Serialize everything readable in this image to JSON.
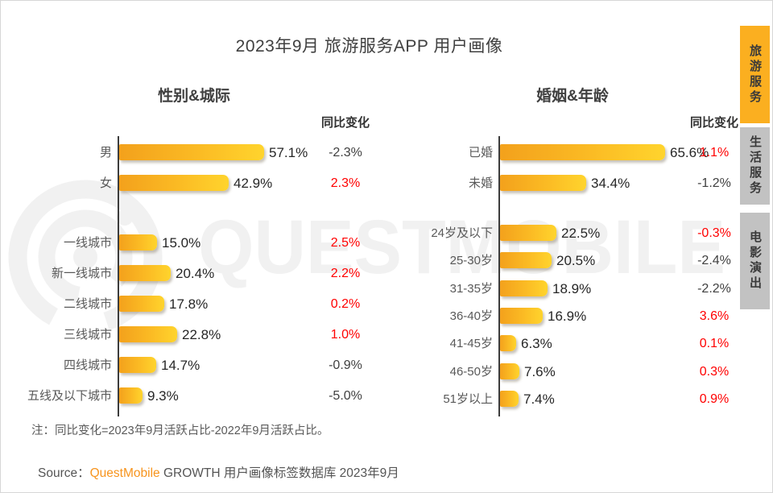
{
  "page": {
    "title": "2023年9月 旅游服务APP 用户画像",
    "note": "注：同比变化=2023年9月活跃占比-2022年9月活跃占比。",
    "source_prefix": "Source：",
    "source_brand": "QuestMobile",
    "source_suffix": " GROWTH 用户画像标签数据库 2023年9月"
  },
  "watermark_text": "QUESTMOBILE",
  "colors": {
    "bar_gradient_start": "#F3A11C",
    "bar_gradient_end": "#FFD42D",
    "change_positive_red": "#FF0000",
    "change_neutral": "#404040",
    "tab_active_bg": "#FBAF20",
    "tab_inactive_bg": "#C2C2C2",
    "brand_orange": "#F7941D",
    "watermark_gray": "#F1F1F1"
  },
  "tabs": [
    {
      "label": "旅游服务",
      "active": true
    },
    {
      "label": "生活服务",
      "active": false
    },
    {
      "label": "电影演出",
      "active": false
    }
  ],
  "chart_data": [
    {
      "type": "bar",
      "orientation": "horizontal",
      "title": "性别&城际",
      "change_header": "同比变化",
      "unit": "%",
      "groups": [
        {
          "rows": [
            {
              "label": "男",
              "value": 57.1,
              "value_label": "57.1%",
              "change": "-2.3%",
              "change_red": false
            },
            {
              "label": "女",
              "value": 42.9,
              "value_label": "42.9%",
              "change": "2.3%",
              "change_red": true
            }
          ]
        },
        {
          "rows": [
            {
              "label": "一线城市",
              "value": 15.0,
              "value_label": "15.0%",
              "change": "2.5%",
              "change_red": true
            },
            {
              "label": "新一线城市",
              "value": 20.4,
              "value_label": "20.4%",
              "change": "2.2%",
              "change_red": true
            },
            {
              "label": "二线城市",
              "value": 17.8,
              "value_label": "17.8%",
              "change": "0.2%",
              "change_red": true
            },
            {
              "label": "三线城市",
              "value": 22.8,
              "value_label": "22.8%",
              "change": "1.0%",
              "change_red": true
            },
            {
              "label": "四线城市",
              "value": 14.7,
              "value_label": "14.7%",
              "change": "-0.9%",
              "change_red": false
            },
            {
              "label": "五线及以下城市",
              "value": 9.3,
              "value_label": "9.3%",
              "change": "-5.0%",
              "change_red": false
            }
          ]
        }
      ]
    },
    {
      "type": "bar",
      "orientation": "horizontal",
      "title": "婚姻&年龄",
      "change_header": "同比变化",
      "unit": "%",
      "groups": [
        {
          "rows": [
            {
              "label": "已婚",
              "value": 65.6,
              "value_label": "65.6%",
              "change": "1.1%",
              "change_red": true
            },
            {
              "label": "未婚",
              "value": 34.4,
              "value_label": "34.4%",
              "change": "-1.2%",
              "change_red": false
            }
          ]
        },
        {
          "rows": [
            {
              "label": "24岁及以下",
              "value": 22.5,
              "value_label": "22.5%",
              "change": "-0.3%",
              "change_red": true
            },
            {
              "label": "25-30岁",
              "value": 20.5,
              "value_label": "20.5%",
              "change": "-2.4%",
              "change_red": false
            },
            {
              "label": "31-35岁",
              "value": 18.9,
              "value_label": "18.9%",
              "change": "-2.2%",
              "change_red": false
            },
            {
              "label": "36-40岁",
              "value": 16.9,
              "value_label": "16.9%",
              "change": "3.6%",
              "change_red": true
            },
            {
              "label": "41-45岁",
              "value": 6.3,
              "value_label": "6.3%",
              "change": "0.1%",
              "change_red": true
            },
            {
              "label": "46-50岁",
              "value": 7.6,
              "value_label": "7.6%",
              "change": "0.3%",
              "change_red": true
            },
            {
              "label": "51岁以上",
              "value": 7.4,
              "value_label": "7.4%",
              "change": "0.9%",
              "change_red": true
            }
          ]
        }
      ]
    }
  ]
}
